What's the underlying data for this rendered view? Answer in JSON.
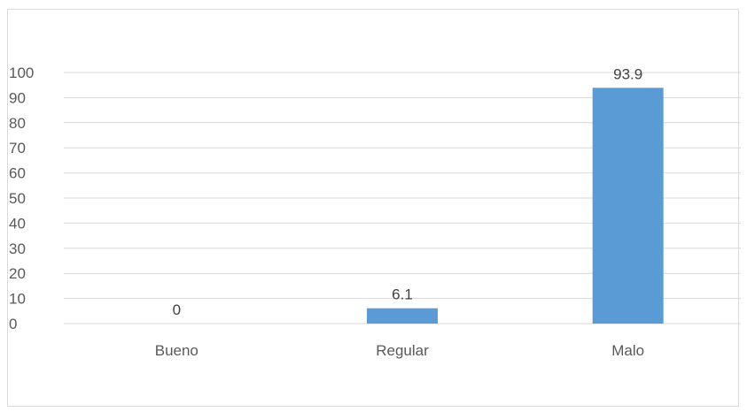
{
  "chart_data": {
    "type": "bar",
    "categories": [
      "Bueno",
      "Regular",
      "Malo"
    ],
    "values": [
      0,
      6.1,
      93.9
    ],
    "value_labels": [
      "0",
      "6.1",
      "93.9"
    ],
    "title": "",
    "xlabel": "",
    "ylabel": "",
    "ylim": [
      0,
      100
    ],
    "yticks": [
      "0",
      "10",
      "20",
      "30",
      "40",
      "50",
      "60",
      "70",
      "80",
      "90",
      "100"
    ],
    "grid": true,
    "legend": "none",
    "bar_color": "#5b9bd5",
    "grid_color": "#d9d9d9"
  }
}
